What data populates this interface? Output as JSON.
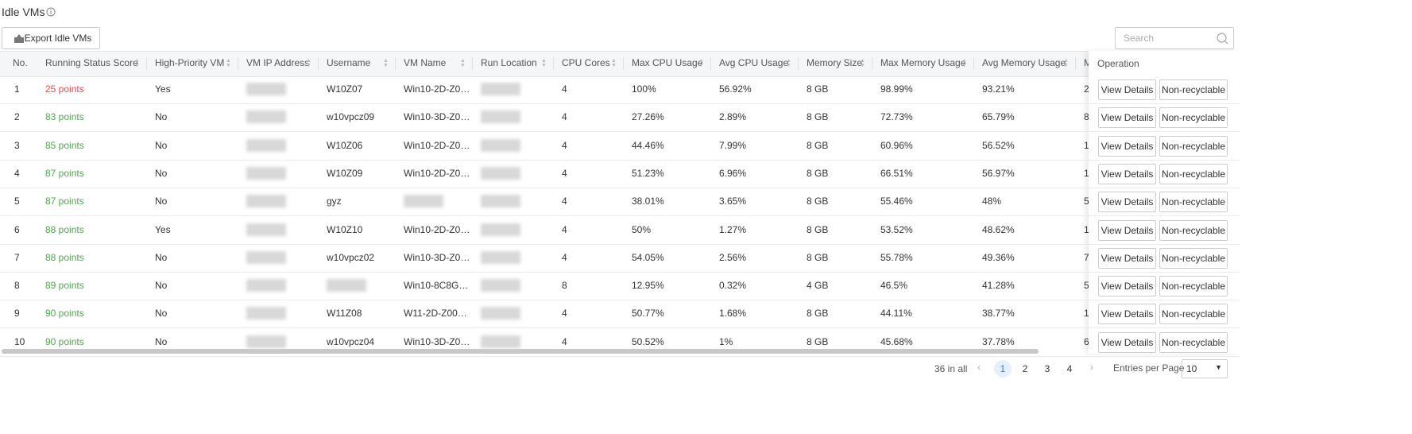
{
  "header": {
    "title": "Idle VMs"
  },
  "toolbar": {
    "export_button": "Export Idle VMs",
    "search_placeholder": "Search"
  },
  "table": {
    "columns": [
      "No.",
      "Running Status Score",
      "High-Priority VM",
      "VM IP Address",
      "Username",
      "VM Name",
      "Run Location",
      "CPU Cores",
      "Max CPU Usage",
      "Avg CPU Usage",
      "Memory Size",
      "Max Memory Usage",
      "Avg Memory Usage",
      "M"
    ],
    "operation_header": "Operation",
    "operations": [
      "View Details",
      "Non-recyclable"
    ],
    "score_colors": [
      "#e5484d",
      "#52a552",
      "#52a552",
      "#52a552",
      "#52a552",
      "#52a552",
      "#52a552",
      "#52a552",
      "#52a552",
      "#52a552"
    ],
    "rows": [
      [
        1,
        "25 points",
        "Yes",
        null,
        "W10Z07",
        "Win10-2D-Z0…",
        null,
        4,
        "100%",
        "56.92%",
        "8 GB",
        "98.99%",
        "93.21%",
        "2"
      ],
      [
        2,
        "83 points",
        "No",
        null,
        "w10vpcz09",
        "Win10-3D-Z0…",
        null,
        4,
        "27.26%",
        "2.89%",
        "8 GB",
        "72.73%",
        "65.79%",
        "8"
      ],
      [
        3,
        "85 points",
        "No",
        null,
        "W10Z06",
        "Win10-2D-Z0…",
        null,
        4,
        "44.46%",
        "7.99%",
        "8 GB",
        "60.96%",
        "56.52%",
        "1"
      ],
      [
        4,
        "87 points",
        "No",
        null,
        "W10Z09",
        "Win10-2D-Z0…",
        null,
        4,
        "51.23%",
        "6.96%",
        "8 GB",
        "66.51%",
        "56.97%",
        "1"
      ],
      [
        5,
        "87 points",
        "No",
        null,
        "gyz",
        null,
        null,
        4,
        "38.01%",
        "3.65%",
        "8 GB",
        "55.46%",
        "48%",
        "5"
      ],
      [
        6,
        "88 points",
        "Yes",
        null,
        "W10Z10",
        "Win10-2D-Z0…",
        null,
        4,
        "50%",
        "1.27%",
        "8 GB",
        "53.52%",
        "48.62%",
        "1"
      ],
      [
        7,
        "88 points",
        "No",
        null,
        "w10vpcz02",
        "Win10-3D-Z0…",
        null,
        4,
        "54.05%",
        "2.56%",
        "8 GB",
        "55.78%",
        "49.36%",
        "7"
      ],
      [
        8,
        "89 points",
        "No",
        null,
        null,
        "Win10-8C8G…",
        null,
        8,
        "12.95%",
        "0.32%",
        "4 GB",
        "46.5%",
        "41.28%",
        "5"
      ],
      [
        9,
        "90 points",
        "No",
        null,
        "W11Z08",
        "W11-2D-Z00…",
        null,
        4,
        "50.77%",
        "1.68%",
        "8 GB",
        "44.11%",
        "38.77%",
        "1"
      ],
      [
        10,
        "90 points",
        "No",
        null,
        "w10vpcz04",
        "Win10-3D-Z0…",
        null,
        4,
        "50.52%",
        "1%",
        "8 GB",
        "45.68%",
        "37.78%",
        "6"
      ]
    ]
  },
  "pagination": {
    "total": "36 in all",
    "pages": [
      1,
      2,
      3,
      4
    ],
    "current_page": 1,
    "per_page_label": "Entries per Page",
    "per_page": "10"
  }
}
